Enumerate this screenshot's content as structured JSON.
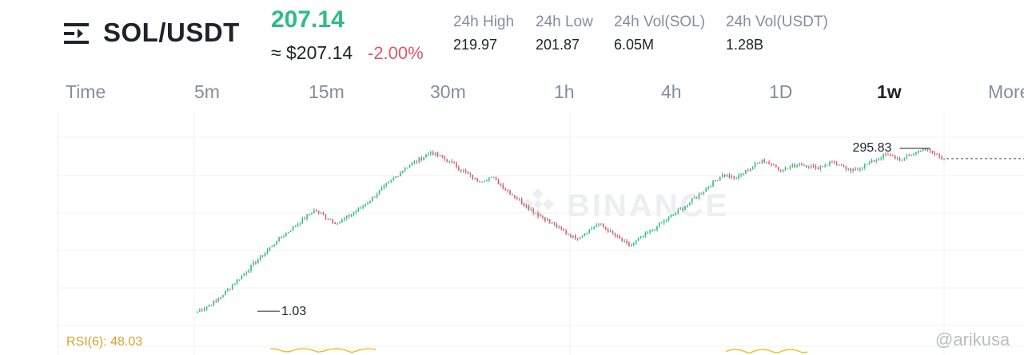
{
  "header": {
    "menu_icon": "menu-icon",
    "pair": "SOL/USDT",
    "last_price": "207.14",
    "approx_price": "≈ $207.14",
    "change": "-2.00%",
    "stats": [
      {
        "label": "24h High",
        "value": "219.97"
      },
      {
        "label": "24h Low",
        "value": "201.87"
      },
      {
        "label": "24h Vol(SOL)",
        "value": "6.05M"
      },
      {
        "label": "24h Vol(USDT)",
        "value": "1.28B"
      }
    ]
  },
  "timeframes": [
    "Time",
    "5m",
    "15m",
    "30m",
    "1h",
    "4h",
    "1D",
    "1w",
    "More"
  ],
  "active_timeframe": "1w",
  "chart": {
    "watermark": "BINANCE",
    "high_label": "295.83",
    "low_label": "1.03",
    "rsi_label": "RSI(6): 48.03",
    "handle": "@arikusa",
    "colors": {
      "up": "#2ebd85",
      "down": "#e0566b",
      "rsi": "#f0b90b"
    }
  },
  "chart_data": {
    "type": "candlestick",
    "interval": "1w",
    "max_marker": 295.83,
    "min_marker": 1.03,
    "last_price": 207.14,
    "rsi6": 48.03,
    "phases": [
      {
        "from": 1.0,
        "to": 1.5
      },
      {
        "from": 1.5,
        "to": 12
      },
      {
        "from": 12,
        "to": 35
      },
      {
        "from": 35,
        "to": 22
      },
      {
        "from": 22,
        "to": 40
      },
      {
        "from": 40,
        "to": 150
      },
      {
        "from": 150,
        "to": 260
      },
      {
        "from": 260,
        "to": 190
      },
      {
        "from": 190,
        "to": 95
      },
      {
        "from": 95,
        "to": 110
      },
      {
        "from": 110,
        "to": 40
      },
      {
        "from": 40,
        "to": 22
      },
      {
        "from": 22,
        "to": 13
      },
      {
        "from": 13,
        "to": 22
      },
      {
        "from": 22,
        "to": 10
      },
      {
        "from": 10,
        "to": 20
      },
      {
        "from": 20,
        "to": 40
      },
      {
        "from": 40,
        "to": 120
      },
      {
        "from": 120,
        "to": 105
      },
      {
        "from": 105,
        "to": 200
      },
      {
        "from": 200,
        "to": 140
      },
      {
        "from": 140,
        "to": 175
      },
      {
        "from": 175,
        "to": 150
      },
      {
        "from": 150,
        "to": 185
      },
      {
        "from": 185,
        "to": 135
      },
      {
        "from": 135,
        "to": 170
      },
      {
        "from": 170,
        "to": 240
      },
      {
        "from": 240,
        "to": 200
      },
      {
        "from": 200,
        "to": 295.83
      },
      {
        "from": 295.83,
        "to": 207.14
      }
    ]
  }
}
